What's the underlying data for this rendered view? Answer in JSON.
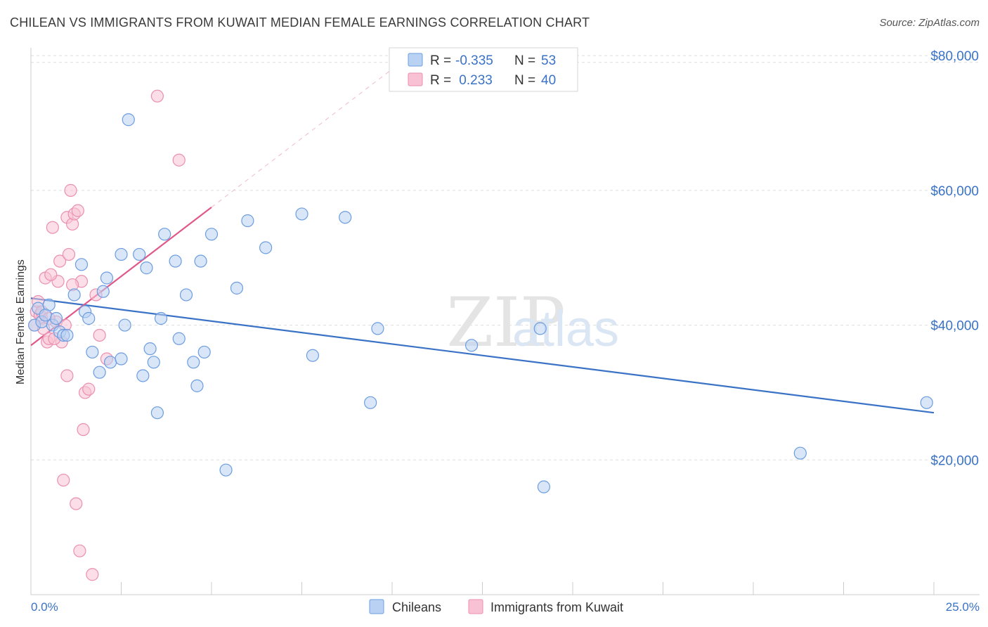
{
  "header": {
    "title": "CHILEAN VS IMMIGRANTS FROM KUWAIT MEDIAN FEMALE EARNINGS CORRELATION CHART",
    "source": "Source: ZipAtlas.com"
  },
  "watermark": {
    "zip": "ZIP",
    "atlas": "atlas"
  },
  "colors": {
    "blue": "#3a72c6",
    "blue_fill": "#b9d2f3",
    "blue_stroke": "#6c9de0",
    "pink": "#e0588a",
    "pink_fill": "#f8c2d4",
    "pink_stroke": "#eb8fb0",
    "grid": "#dddddd"
  },
  "legend": {
    "r_label": "R =",
    "n_label": "N =",
    "rows": [
      {
        "r": "-0.335",
        "n": "53"
      },
      {
        "r": " 0.233",
        "n": "40"
      }
    ]
  },
  "chart_data": {
    "type": "scatter",
    "title": "CHILEAN VS IMMIGRANTS FROM KUWAIT MEDIAN FEMALE EARNINGS CORRELATION CHART",
    "xlabel": "",
    "ylabel": "Median Female Earnings",
    "xlim": [
      0,
      25
    ],
    "ylim": [
      0,
      82000
    ],
    "x_tick_labels": [
      "0.0%",
      "25.0%"
    ],
    "y_ticks": [
      {
        "value": 20000,
        "label": "$20,000"
      },
      {
        "value": 40000,
        "label": "$40,000"
      },
      {
        "value": 60000,
        "label": "$60,000"
      },
      {
        "value": 80000,
        "label": "$80,000"
      }
    ],
    "series": [
      {
        "name": "Chileans",
        "color": "#3a72c6",
        "points": [
          [
            0.1,
            40000
          ],
          [
            0.2,
            42500
          ],
          [
            0.3,
            40500
          ],
          [
            0.5,
            43000
          ],
          [
            0.6,
            40000
          ],
          [
            0.7,
            41000
          ],
          [
            0.8,
            39000
          ],
          [
            0.9,
            38500
          ],
          [
            1.0,
            38500
          ],
          [
            1.2,
            44500
          ],
          [
            1.4,
            49000
          ],
          [
            1.5,
            42000
          ],
          [
            1.6,
            41000
          ],
          [
            1.7,
            36000
          ],
          [
            1.9,
            33000
          ],
          [
            2.0,
            45000
          ],
          [
            2.1,
            47000
          ],
          [
            2.2,
            34500
          ],
          [
            2.5,
            35000
          ],
          [
            2.5,
            50500
          ],
          [
            2.6,
            40000
          ],
          [
            2.7,
            70500
          ],
          [
            3.0,
            50500
          ],
          [
            3.1,
            32500
          ],
          [
            3.2,
            48500
          ],
          [
            3.3,
            36500
          ],
          [
            3.4,
            34500
          ],
          [
            3.5,
            27000
          ],
          [
            3.6,
            41000
          ],
          [
            3.7,
            53500
          ],
          [
            4.0,
            49500
          ],
          [
            4.1,
            38000
          ],
          [
            4.3,
            44500
          ],
          [
            4.5,
            34500
          ],
          [
            4.6,
            31000
          ],
          [
            4.7,
            49500
          ],
          [
            4.8,
            36000
          ],
          [
            5.0,
            53500
          ],
          [
            5.4,
            18500
          ],
          [
            5.7,
            45500
          ],
          [
            6.0,
            55500
          ],
          [
            6.5,
            51500
          ],
          [
            7.5,
            56500
          ],
          [
            7.8,
            35500
          ],
          [
            8.7,
            56000
          ],
          [
            9.4,
            28500
          ],
          [
            9.6,
            39500
          ],
          [
            12.2,
            37000
          ],
          [
            14.1,
            39500
          ],
          [
            14.2,
            16000
          ],
          [
            21.3,
            21000
          ],
          [
            24.8,
            28500
          ],
          [
            0.4,
            41500
          ]
        ]
      },
      {
        "name": "Immigrants from Kuwait",
        "color": "#e0588a",
        "points": [
          [
            0.1,
            40000
          ],
          [
            0.15,
            42000
          ],
          [
            0.2,
            43500
          ],
          [
            0.3,
            41000
          ],
          [
            0.35,
            39500
          ],
          [
            0.4,
            47000
          ],
          [
            0.45,
            37500
          ],
          [
            0.5,
            38000
          ],
          [
            0.6,
            54500
          ],
          [
            0.7,
            40500
          ],
          [
            0.75,
            46500
          ],
          [
            0.8,
            49500
          ],
          [
            0.85,
            37500
          ],
          [
            0.9,
            17000
          ],
          [
            1.0,
            56000
          ],
          [
            1.05,
            50500
          ],
          [
            1.1,
            60000
          ],
          [
            1.15,
            55000
          ],
          [
            1.2,
            56500
          ],
          [
            1.25,
            13500
          ],
          [
            1.3,
            57000
          ],
          [
            1.35,
            6500
          ],
          [
            1.4,
            46500
          ],
          [
            1.45,
            24500
          ],
          [
            1.5,
            30000
          ],
          [
            1.6,
            30500
          ],
          [
            1.7,
            3000
          ],
          [
            1.8,
            44500
          ],
          [
            1.9,
            38500
          ],
          [
            2.1,
            35000
          ],
          [
            3.5,
            74000
          ],
          [
            4.1,
            64500
          ],
          [
            0.25,
            41500
          ],
          [
            0.55,
            47500
          ],
          [
            0.65,
            38000
          ],
          [
            0.95,
            40000
          ],
          [
            1.15,
            46000
          ],
          [
            0.3,
            42000
          ],
          [
            0.5,
            41000
          ],
          [
            1.0,
            32500
          ]
        ]
      }
    ],
    "trendlines": [
      {
        "series": "Chileans",
        "x0": 0,
        "y0": 44000,
        "x1": 25,
        "y1": 27000,
        "style": "solid"
      },
      {
        "series": "Immigrants from Kuwait",
        "x0": 0,
        "y0": 37000,
        "x1": 5,
        "y1": 57500,
        "style": "solid"
      },
      {
        "series": "Immigrants from Kuwait",
        "x0": 5,
        "y0": 57500,
        "x1": 10,
        "y1": 78000,
        "style": "dashed"
      }
    ],
    "grid": true,
    "legend_position": "top-center"
  }
}
